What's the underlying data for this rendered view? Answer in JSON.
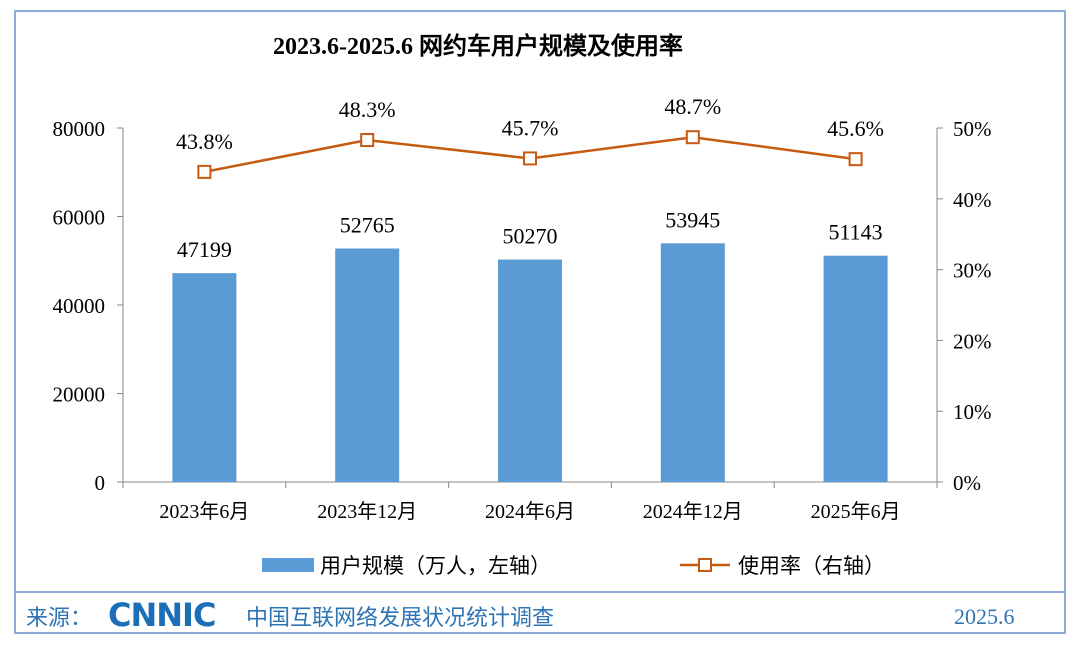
{
  "chart_data": {
    "type": "bar+line",
    "title": "2023.6-2025.6 网约车用户规模及使用率",
    "categories": [
      "2023年6月",
      "2023年12月",
      "2024年6月",
      "2024年12月",
      "2025年6月"
    ],
    "series": [
      {
        "name": "用户规模（万人，左轴）",
        "type": "bar",
        "axis": "left",
        "values": [
          47199,
          52765,
          50270,
          53945,
          51143
        ],
        "labels": [
          "47199",
          "52765",
          "50270",
          "53945",
          "51143"
        ],
        "color": "#5b9bd5"
      },
      {
        "name": "使用率（右轴）",
        "type": "line",
        "axis": "right",
        "values": [
          43.8,
          48.3,
          45.7,
          48.7,
          45.6
        ],
        "labels": [
          "43.8%",
          "48.3%",
          "45.7%",
          "48.7%",
          "45.6%"
        ],
        "color": "#c55a11"
      }
    ],
    "y_left": {
      "ylim": [
        0,
        80000
      ],
      "ticks": [
        "0",
        "20000",
        "40000",
        "60000",
        "80000"
      ]
    },
    "y_right": {
      "ylim": [
        0,
        50
      ],
      "ticks": [
        "0%",
        "10%",
        "20%",
        "30%",
        "40%",
        "50%"
      ]
    },
    "legend": "bottom"
  },
  "footer": {
    "source_label": "来源：",
    "logo": "CNNIC",
    "org": "中国互联网络发展状况统计调查",
    "date": "2025.6"
  }
}
